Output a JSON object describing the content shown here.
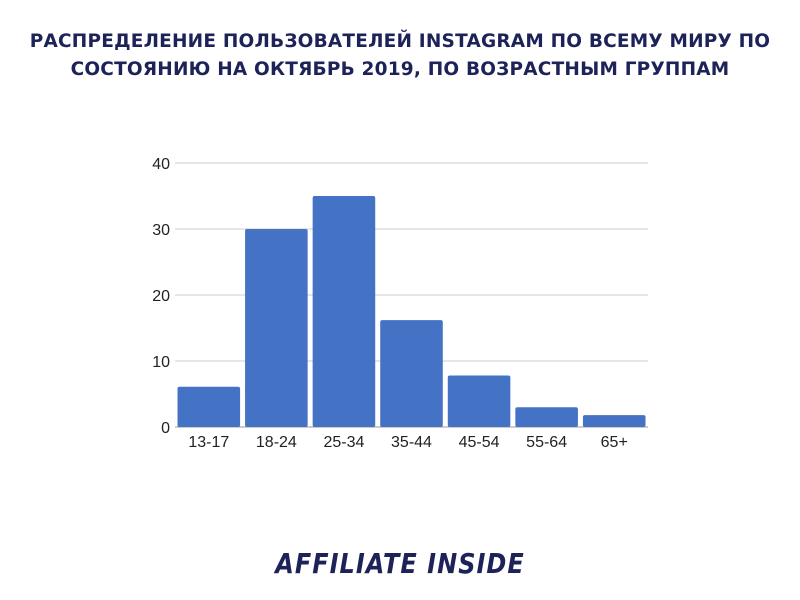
{
  "title": {
    "line1": "РАСПРЕДЕЛЕНИЕ ПОЛЬЗОВАТЕЛЕЙ INSTAGRAM ПО ВСЕМУ МИРУ ПО",
    "line2": "СОСТОЯНИЮ НА ОКТЯБРЬ 2019, ПО ВОЗРАСТНЫМ ГРУППАМ"
  },
  "chart_data": {
    "type": "bar",
    "categories": [
      "13-17",
      "18-24",
      "25-34",
      "35-44",
      "45-54",
      "55-64",
      "65+"
    ],
    "values": [
      6.1,
      30,
      35,
      16.2,
      7.8,
      3,
      1.8
    ],
    "ylim": [
      0,
      40
    ],
    "yticks": [
      0,
      10,
      20,
      30,
      40
    ],
    "grid": true,
    "bar_color": "#4472c4",
    "grid_color": "#cccccc"
  },
  "logo": {
    "text": "AFFILIATE INSIDE"
  }
}
